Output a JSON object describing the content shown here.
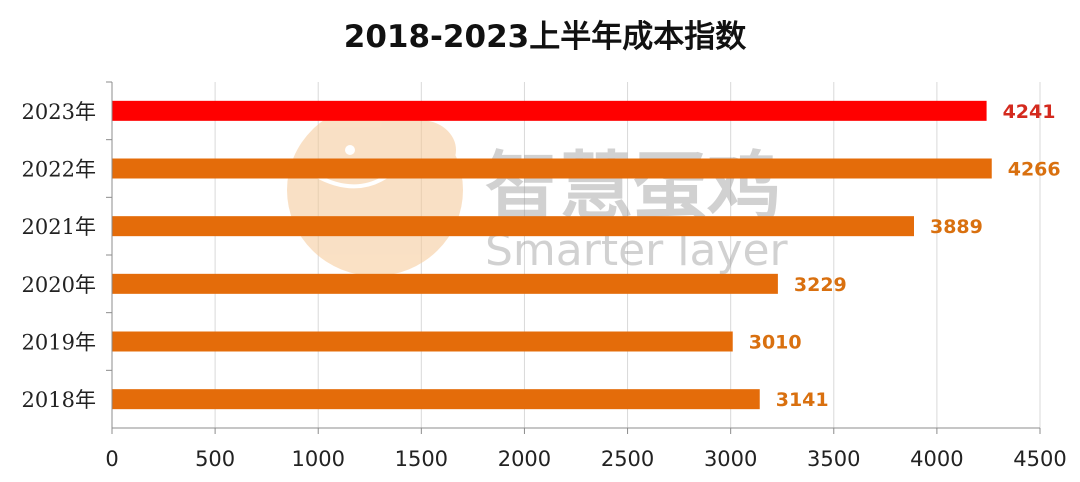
{
  "chart_data": {
    "type": "bar",
    "orientation": "horizontal",
    "title": "2018-2023上半年成本指数",
    "categories": [
      "2023年",
      "2022年",
      "2021年",
      "2020年",
      "2019年",
      "2018年"
    ],
    "values": [
      4241,
      4266,
      3889,
      3229,
      3010,
      3141
    ],
    "data_labels": [
      "4241",
      "4266",
      "3889",
      "3229",
      "3010",
      "3141"
    ],
    "bar_colors": [
      "#ff0000",
      "#e46c0a",
      "#e46c0a",
      "#e46c0a",
      "#e46c0a",
      "#e46c0a"
    ],
    "label_colors": [
      "#d42a1e",
      "#d9700f",
      "#d9700f",
      "#d9700f",
      "#d9700f",
      "#d9700f"
    ],
    "xlim": [
      0,
      4500
    ],
    "xticks": [
      0,
      500,
      1000,
      1500,
      2000,
      2500,
      3000,
      3500,
      4000,
      4500
    ],
    "xtick_labels": [
      "0",
      "500",
      "1000",
      "1500",
      "2000",
      "2500",
      "3000",
      "3500",
      "4000",
      "4500"
    ],
    "grid": "vertical",
    "legend": "none"
  },
  "watermark": {
    "text_cn": "智慧蛋鸡",
    "text_en": "Smarter layer",
    "logo": "chicken-logo-icon",
    "logo_color": "#f5c896"
  }
}
